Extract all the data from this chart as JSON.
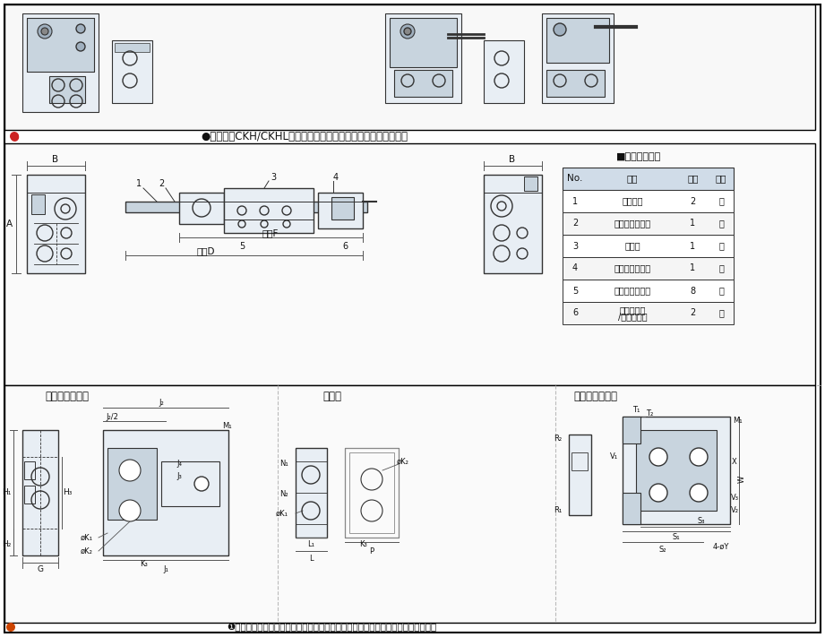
{
  "title": "",
  "bg_color": "#ffffff",
  "border_color": "#000000",
  "section_divider_color": "#000000",
  "top_note": "●本产品和CKH/CKHL滑台气缸配套使用，起到调整行程的作用。",
  "bottom_note": "❶示意图为标准型，对称型的仅后端行程调整器与标准型完全对称，其余零件相同。",
  "table_title": "■每套零件清单",
  "table_headers": [
    "No.",
    "品名",
    "数量",
    "单位"
  ],
  "table_rows": [
    [
      "1",
      "固定螺母",
      "2",
      "个"
    ],
    [
      "2",
      "前端行程调整器",
      "1",
      "个"
    ],
    [
      "3",
      "碰撞块",
      "1",
      "个"
    ],
    [
      "4",
      "后端行程调整器",
      "1",
      "个"
    ],
    [
      "5",
      "内六角杯头螺丝",
      "8",
      "个"
    ],
    [
      "6",
      "橡胶头螺丝\n/油压缓冲器",
      "2",
      "个"
    ]
  ],
  "table_header_bg": "#d0dce8",
  "table_row_bg_alt": "#f5f5f5",
  "section_labels": {
    "front": "前端行程调整器",
    "bumper": "碰撞块",
    "rear": "后端行程调整器"
  },
  "diagram_labels_main": {
    "B_top": "B",
    "B_right": "B",
    "A": "A",
    "maxF": "最大F",
    "maxD": "最大D",
    "num1": "1",
    "num2": "2",
    "num3": "3",
    "num4": "4",
    "num5": "5",
    "num6": "6"
  },
  "diagram_labels_front": {
    "H1": "H₁",
    "H2": "H₂",
    "H3": "H₃",
    "G": "G",
    "J1": "J₁",
    "J2": "J₂",
    "J2_2": "J₂/2",
    "J3": "J₃",
    "J4": "J₄",
    "K1": "øK₁",
    "K2": "øK₂",
    "K3": "K₃",
    "M1": "M₁"
  },
  "diagram_labels_bumper": {
    "N1": "N₁",
    "N2": "N₂",
    "K1": "øK₁",
    "K2": "øK₂",
    "K3": "K₃",
    "L": "L",
    "L1": "L₁",
    "P": "P"
  },
  "diagram_labels_rear": {
    "R1": "R₁",
    "R2": "R₂",
    "T1": "T₁",
    "T2": "T₂",
    "V1": "V₁",
    "V2": "V₂",
    "V3": "V₃",
    "S1": "S₁",
    "S2": "S₂",
    "S3": "S₃",
    "X": "X",
    "W": "W",
    "M1": "M₁",
    "Y": "4-øY"
  },
  "line_color": "#333333",
  "dim_line_color": "#555555",
  "fill_light": "#e8eef4",
  "fill_mid": "#c8d4de",
  "fill_dark": "#a0b0bf",
  "watermark_color": "#c8d8e8",
  "dashed_color": "#888888"
}
